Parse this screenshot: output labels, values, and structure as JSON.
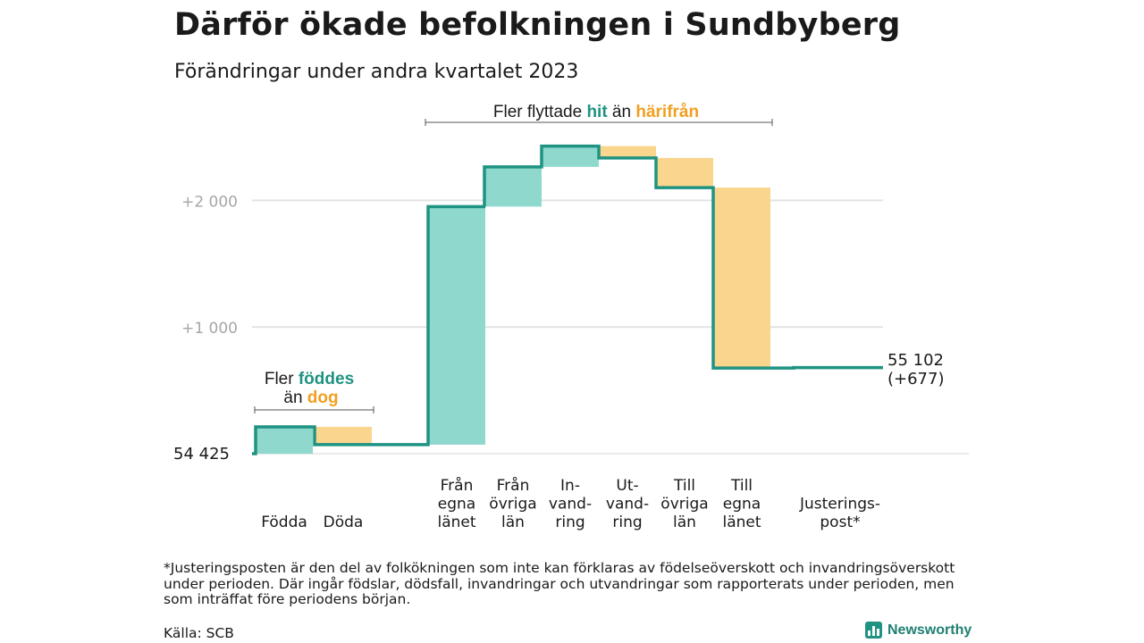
{
  "header": {
    "title": "Därför ökade befolkningen i Sundbyberg",
    "subtitle": "Förändringar under andra kvartalet 2023"
  },
  "colors": {
    "increase": "#8fd8cd",
    "decrease": "#fad58d",
    "line": "#1f9382",
    "grid": "#e3e3e3",
    "tick_text": "#a6a6a6",
    "accent_teal": "#1f9382",
    "accent_orange": "#f0a020"
  },
  "chart_data": {
    "type": "waterfall",
    "start_label": "54  425",
    "start_value": 54425,
    "end_value": 55102,
    "end_label_line1": "55 102",
    "end_label_line2": "(+677)",
    "ylim_offset": [
      0,
      2700
    ],
    "yticks": [
      {
        "value": 1000,
        "label": "+1   000"
      },
      {
        "value": 2000,
        "label": "+2   000"
      }
    ],
    "steps": [
      {
        "label": [
          "Födda"
        ],
        "delta": 212
      },
      {
        "label": [
          "Döda"
        ],
        "delta": -141
      },
      {
        "label": [
          "Från",
          "egna",
          "länet"
        ],
        "delta": 1880
      },
      {
        "label": [
          "Från",
          "övriga",
          "län"
        ],
        "delta": 314
      },
      {
        "label": [
          "In-",
          "vand-",
          "ring"
        ],
        "delta": 164
      },
      {
        "label": [
          "Ut-",
          "vand-",
          "ring"
        ],
        "delta": -94
      },
      {
        "label": [
          "Till",
          "övriga",
          "län"
        ],
        "delta": -234
      },
      {
        "label": [
          "Till",
          "egna",
          "länet"
        ],
        "delta": -1425
      },
      {
        "label": [
          "Justerings-",
          "post*"
        ],
        "delta": 4
      }
    ],
    "annotations": {
      "births_line1_a": "Fler ",
      "births_line1_b": "föddes",
      "births_line2_a": "än ",
      "births_line2_b": "dog",
      "migration_a": "Fler flyttade ",
      "migration_b": "hit",
      "migration_c": " än ",
      "migration_d": "härifrån"
    }
  },
  "footnote": "*Justeringsposten är den del av folkökningen som inte kan förklaras av födelseöverskott och invandringsöverskott under perioden. Där ingår födslar, dödsfall, invandringar och utvandringar som rapporterats under perioden, men som inträffat före periodens början.",
  "source": "Källa: SCB",
  "brand": {
    "name": "Newsworthy",
    "icon": "bar-chart-icon"
  }
}
